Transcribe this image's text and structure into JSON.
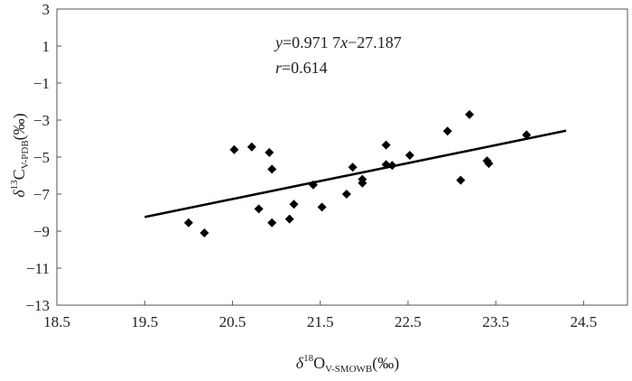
{
  "chart_data": {
    "type": "scatter",
    "title": "",
    "xlabel": {
      "prefix": "δ",
      "sup": "18",
      "main": "O",
      "sub": "V-SMOWB",
      "suffix": "(‰)"
    },
    "ylabel": {
      "prefix": "δ",
      "sup": "13",
      "main": "C",
      "sub": "V-PDB",
      "suffix": "(‰)"
    },
    "xlim": [
      18.5,
      25
    ],
    "ylim": [
      -13,
      3
    ],
    "xticks": [
      18.5,
      19.5,
      20.5,
      21.5,
      22.5,
      23.5,
      24.5
    ],
    "xtick_labels": [
      "18.5",
      "19.5",
      "20.5",
      "21.5",
      "22.5",
      "23.5",
      "24.5"
    ],
    "yticks": [
      3,
      1,
      -1,
      -3,
      -5,
      -7,
      -9,
      -11,
      -13
    ],
    "ytick_labels": [
      "3",
      "1",
      "−1",
      "−3",
      "−5",
      "−7",
      "−9",
      "−11",
      "−13"
    ],
    "grid": false,
    "legend": "none",
    "series": [
      {
        "marker": "diamond",
        "color": "#000000",
        "points": [
          [
            20.0,
            -8.55
          ],
          [
            20.18,
            -9.1
          ],
          [
            20.52,
            -4.6
          ],
          [
            20.72,
            -4.45
          ],
          [
            20.8,
            -7.8
          ],
          [
            20.92,
            -4.75
          ],
          [
            20.95,
            -5.65
          ],
          [
            20.95,
            -8.55
          ],
          [
            21.15,
            -8.35
          ],
          [
            21.2,
            -7.55
          ],
          [
            21.42,
            -6.5
          ],
          [
            21.52,
            -7.7
          ],
          [
            21.8,
            -7.0
          ],
          [
            21.87,
            -5.55
          ],
          [
            21.98,
            -6.2
          ],
          [
            21.98,
            -6.4
          ],
          [
            22.25,
            -4.35
          ],
          [
            22.25,
            -5.4
          ],
          [
            22.32,
            -5.45
          ],
          [
            22.52,
            -4.9
          ],
          [
            22.95,
            -3.6
          ],
          [
            23.1,
            -6.25
          ],
          [
            23.2,
            -2.7
          ],
          [
            23.4,
            -5.2
          ],
          [
            23.42,
            -5.35
          ],
          [
            23.85,
            -3.8
          ]
        ]
      }
    ],
    "trendline": {
      "slope": 0.9717,
      "intercept": -27.187,
      "x_range": [
        19.5,
        24.3
      ],
      "color": "#000000"
    },
    "annotations": {
      "equation": {
        "y_var": "y",
        "rest": "=0.971 7",
        "x_var": "x",
        "tail": "−27.187"
      },
      "correlation": {
        "r_var": "r",
        "rest": "=0.614"
      }
    }
  }
}
